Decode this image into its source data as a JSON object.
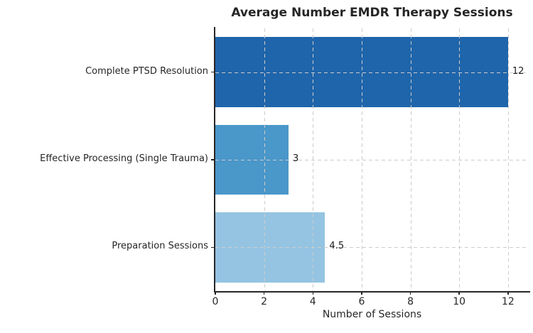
{
  "chart_data": {
    "type": "bar",
    "orientation": "horizontal",
    "title": "Average Number EMDR Therapy Sessions",
    "xlabel": "Number of Sessions",
    "ylabel": "",
    "categories": [
      "Complete PTSD Resolution",
      "Effective Processing (Single Trauma)",
      "Preparation Sessions"
    ],
    "values": [
      12,
      3,
      4.5
    ],
    "value_labels": [
      "12",
      "3",
      "4.5"
    ],
    "bar_colors": [
      "#1f65ab",
      "#4a97c9",
      "#94c4e2"
    ],
    "xticks": [
      0,
      2,
      4,
      6,
      8,
      10,
      12
    ],
    "xlim": [
      0,
      12.85
    ],
    "grid": "dashed",
    "grid_color": "#cccccc",
    "axis_color": "#262626",
    "text_color": "#262626",
    "legend": "none"
  }
}
